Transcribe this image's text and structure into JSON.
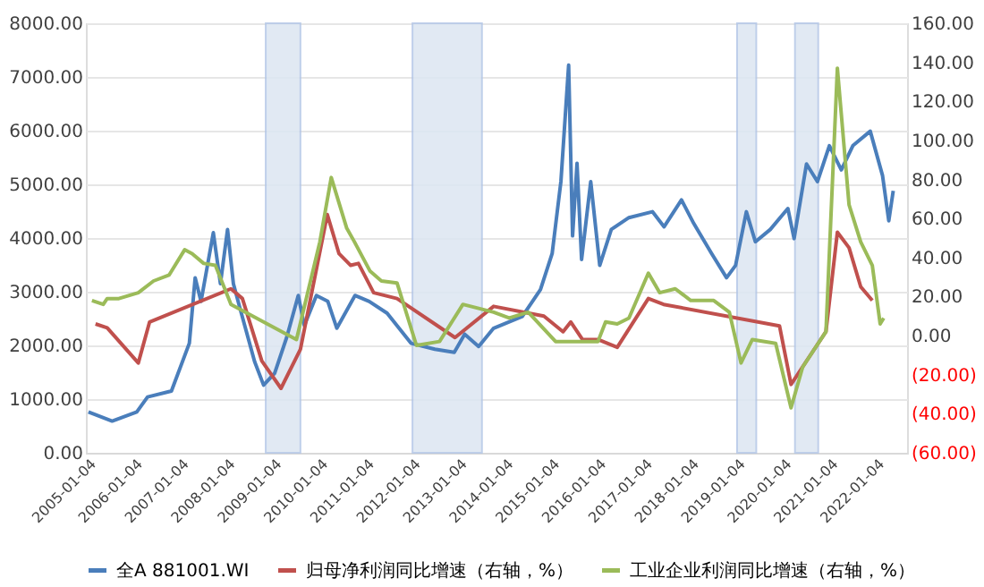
{
  "chart_data": {
    "type": "line",
    "legend": "bottom",
    "grid": "y",
    "xlim": [
      "2004-12-15",
      "2022-09-01"
    ],
    "xticks": [
      "2005-01-04",
      "2006-01-04",
      "2007-01-04",
      "2008-01-04",
      "2009-01-04",
      "2010-01-04",
      "2011-01-04",
      "2012-01-04",
      "2013-01-04",
      "2014-01-04",
      "2015-01-04",
      "2016-01-04",
      "2017-01-04",
      "2018-01-04",
      "2019-01-04",
      "2020-01-04",
      "2021-01-04",
      "2022-01-04"
    ],
    "ylim": [
      0,
      8000
    ],
    "yticks": [
      {
        "value": 0,
        "label": "0.00"
      },
      {
        "value": 1000,
        "label": "1000.00"
      },
      {
        "value": 2000,
        "label": "2000.00"
      },
      {
        "value": 3000,
        "label": "3000.00"
      },
      {
        "value": 4000,
        "label": "4000.00"
      },
      {
        "value": 5000,
        "label": "5000.00"
      },
      {
        "value": 6000,
        "label": "6000.00"
      },
      {
        "value": 7000,
        "label": "7000.00"
      },
      {
        "value": 8000,
        "label": "8000.00"
      }
    ],
    "y2lim": [
      -60,
      160
    ],
    "y2ticks": [
      {
        "value": -60,
        "label": "(60.00)"
      },
      {
        "value": -40,
        "label": "(40.00)"
      },
      {
        "value": -20,
        "label": "(20.00)"
      },
      {
        "value": 0,
        "label": "0.00"
      },
      {
        "value": 20,
        "label": "20.00"
      },
      {
        "value": 40,
        "label": "40.00"
      },
      {
        "value": 60,
        "label": "60.00"
      },
      {
        "value": 80,
        "label": "80.00"
      },
      {
        "value": 100,
        "label": "100.00"
      },
      {
        "value": 120,
        "label": "120.00"
      },
      {
        "value": 140,
        "label": "140.00"
      },
      {
        "value": 160,
        "label": "160.00"
      }
    ],
    "bands": [
      {
        "axis": "x",
        "from": "2008-11",
        "to": "2009-08",
        "color": "#dce6f2"
      },
      {
        "axis": "x",
        "from": "2012-01",
        "to": "2013-07",
        "color": "#dce6f2"
      },
      {
        "axis": "x",
        "from": "2019-01",
        "to": "2019-06",
        "color": "#dce6f2"
      },
      {
        "axis": "x",
        "from": "2020-04",
        "to": "2020-10",
        "color": "#dce6f2"
      }
    ],
    "series": [
      {
        "name": "全A 881001.WI",
        "color": "#4a7ebb",
        "x": [
          "2005-01-04",
          "2005-07-10",
          "2006-01-20",
          "2006-04-15",
          "2006-10-20",
          "2007-03-10",
          "2007-04-25",
          "2007-06-10",
          "2007-09-15",
          "2007-11-10",
          "2008-01-05",
          "2008-02-20",
          "2008-04-10",
          "2008-08-05",
          "2008-10-15",
          "2009-01-10",
          "2009-04-15",
          "2009-07-15",
          "2009-09-01",
          "2009-12-05",
          "2010-03-05",
          "2010-05-15",
          "2010-10-05",
          "2011-01-25",
          "2011-06-15",
          "2011-12-20",
          "2012-06-25",
          "2012-11-25",
          "2013-02-15",
          "2013-06-05",
          "2013-10-01",
          "2014-05-15",
          "2014-10-05",
          "2015-01-05",
          "2015-03-15",
          "2015-05-15",
          "2015-06-15",
          "2015-07-20",
          "2015-08-25",
          "2015-11-05",
          "2016-01-15",
          "2016-04-15",
          "2016-09-01",
          "2017-03-05",
          "2017-06-05",
          "2017-10-20",
          "2018-01-25",
          "2018-06-15",
          "2018-10-10",
          "2018-12-20",
          "2019-03-15",
          "2019-05-25",
          "2019-09-20",
          "2020-02-05",
          "2020-03-25",
          "2020-07-01",
          "2020-09-25",
          "2020-12-28",
          "2021-04-01",
          "2021-07-01",
          "2021-11-15",
          "2022-02-20",
          "2022-04-10",
          "2022-05-15"
        ],
        "values": [
          760,
          590,
          760,
          1040,
          1150,
          2040,
          3260,
          2820,
          4100,
          3150,
          4160,
          3150,
          2710,
          1700,
          1260,
          1480,
          2150,
          2930,
          2370,
          2930,
          2820,
          2320,
          2930,
          2820,
          2600,
          2040,
          1930,
          1870,
          2210,
          1980,
          2320,
          2540,
          3040,
          3710,
          5050,
          7220,
          4040,
          5390,
          3600,
          5050,
          3490,
          4160,
          4380,
          4490,
          4210,
          4710,
          4270,
          3710,
          3260,
          3490,
          4490,
          3930,
          4160,
          4550,
          3990,
          5380,
          5050,
          5720,
          5270,
          5720,
          5990,
          5160,
          4320,
          4880
        ]
      },
      {
        "name": "归母净利润同比增速（右轴，%）",
        "color": "#c0504d",
        "axis": "y2",
        "x": [
          "2005-03",
          "2005-06",
          "2006-02",
          "2006-05",
          "2008-02",
          "2008-05",
          "2008-10",
          "2009-03",
          "2009-08",
          "2010-03",
          "2010-06",
          "2010-09",
          "2010-11",
          "2011-03",
          "2011-09",
          "2012-12",
          "2013-10",
          "2014-11",
          "2015-04",
          "2015-06",
          "2015-09",
          "2016-01",
          "2016-06",
          "2017-02",
          "2017-06",
          "2019-12",
          "2020-03",
          "2020-12",
          "2021-03",
          "2021-06",
          "2021-09",
          "2021-12"
        ],
        "values": [
          6,
          4,
          -14,
          7,
          24,
          19,
          -13,
          -27,
          -7,
          62,
          42,
          36,
          37,
          22,
          19,
          -1,
          15,
          10,
          2,
          7,
          -2,
          -2,
          -6,
          19,
          16,
          5,
          -25,
          2,
          53,
          45,
          25,
          18
        ]
      },
      {
        "name": "工业企业利润同比增速（右轴，%）",
        "color": "#9bbb59",
        "axis": "y2",
        "x": [
          "2005-02",
          "2005-05",
          "2005-06",
          "2005-09",
          "2006-02",
          "2006-06",
          "2006-10",
          "2007-02",
          "2007-04",
          "2007-07",
          "2007-10",
          "2008-02",
          "2009-07",
          "2010-01",
          "2010-04",
          "2010-08",
          "2010-10",
          "2011-02",
          "2011-05",
          "2011-09",
          "2012-02",
          "2012-08",
          "2013-02",
          "2013-10",
          "2014-02",
          "2014-07",
          "2015-02",
          "2015-10",
          "2016-01",
          "2016-03",
          "2016-06",
          "2016-09",
          "2017-02",
          "2017-05",
          "2017-09",
          "2018-01",
          "2018-07",
          "2018-11",
          "2019-02",
          "2019-05",
          "2019-11",
          "2020-03",
          "2020-06",
          "2020-12",
          "2021-03",
          "2021-06",
          "2021-09",
          "2021-12",
          "2022-02",
          "2022-03"
        ],
        "values": [
          18,
          16,
          19,
          19,
          22,
          28,
          31,
          44,
          42,
          37,
          36,
          16,
          -2,
          48,
          81,
          55,
          48,
          33,
          28,
          27,
          -5,
          -3,
          16,
          12,
          9,
          12,
          -3,
          -3,
          -3,
          7,
          6,
          9,
          32,
          22,
          24,
          18,
          18,
          12,
          -14,
          -2,
          -4,
          -37,
          -16,
          2,
          137,
          67,
          48,
          36,
          6,
          9
        ]
      }
    ]
  }
}
